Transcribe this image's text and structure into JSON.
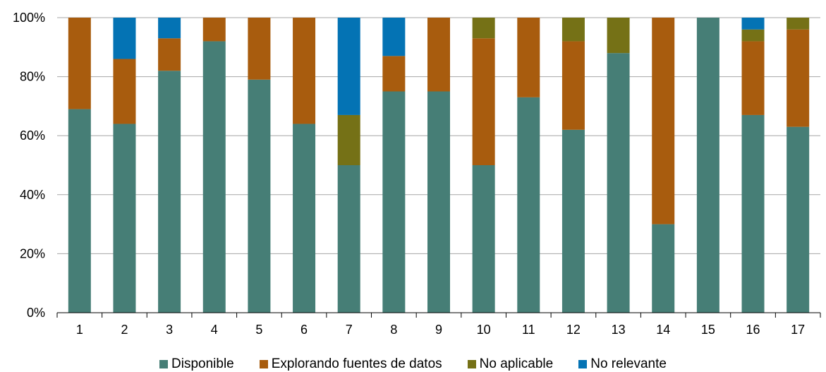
{
  "chart_data": {
    "type": "bar",
    "stacked": true,
    "title": "",
    "xlabel": "",
    "ylabel": "",
    "ylim": [
      0,
      100
    ],
    "yticks": [
      "0%",
      "20%",
      "40%",
      "60%",
      "80%",
      "100%"
    ],
    "grid": true,
    "legend_position": "bottom",
    "categories": [
      "1",
      "2",
      "3",
      "4",
      "5",
      "6",
      "7",
      "8",
      "9",
      "10",
      "11",
      "12",
      "13",
      "14",
      "15",
      "16",
      "17"
    ],
    "series": [
      {
        "name": "Disponible",
        "color": "#467e76",
        "values": [
          69,
          64,
          82,
          92,
          79,
          64,
          50,
          75,
          75,
          50,
          73,
          62,
          88,
          30,
          100,
          67,
          63
        ]
      },
      {
        "name": "Explorando fuentes de datos",
        "color": "#a85c0e",
        "values": [
          31,
          22,
          11,
          8,
          21,
          36,
          0,
          12,
          25,
          43,
          27,
          30,
          0,
          70,
          0,
          25,
          33
        ]
      },
      {
        "name": "No aplicable",
        "color": "#757116",
        "values": [
          0,
          0,
          0,
          0,
          0,
          0,
          17,
          0,
          0,
          7,
          0,
          8,
          12,
          0,
          0,
          4,
          4
        ]
      },
      {
        "name": "No relevante",
        "color": "#0473b4",
        "values": [
          0,
          14,
          7,
          0,
          0,
          0,
          33,
          13,
          0,
          0,
          0,
          0,
          0,
          0,
          0,
          4,
          0
        ]
      }
    ]
  }
}
